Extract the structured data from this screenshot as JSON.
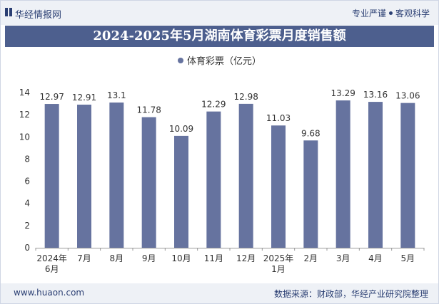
{
  "header": {
    "brand": "华经情报网",
    "tagline_left": "专业严谨",
    "tagline_right": "客观科学"
  },
  "chart_data": {
    "type": "bar",
    "title": "2024-2025年5月湖南体育彩票月度销售额",
    "categories": [
      [
        "2024年",
        "6月"
      ],
      [
        "7月"
      ],
      [
        "8月"
      ],
      [
        "9月"
      ],
      [
        "10月"
      ],
      [
        "11月"
      ],
      [
        "12月"
      ],
      [
        "2025年",
        "1月"
      ],
      [
        "2月"
      ],
      [
        "3月"
      ],
      [
        "4月"
      ],
      [
        "5月"
      ]
    ],
    "series": [
      {
        "name": "体育彩票（亿元）",
        "values": [
          12.97,
          12.91,
          13.1,
          11.78,
          10.09,
          12.29,
          12.98,
          11.03,
          9.68,
          13.29,
          13.16,
          13.06
        ]
      }
    ],
    "ylim": [
      0,
      14
    ],
    "yticks": [
      0,
      2,
      4,
      6,
      8,
      10,
      12,
      14
    ],
    "bar_color": "#66739f",
    "legend_position": "top-center",
    "grid": false
  },
  "footer": {
    "url": "www.huaon.com",
    "source": "数据来源：财政部，华经产业研究院整理"
  }
}
